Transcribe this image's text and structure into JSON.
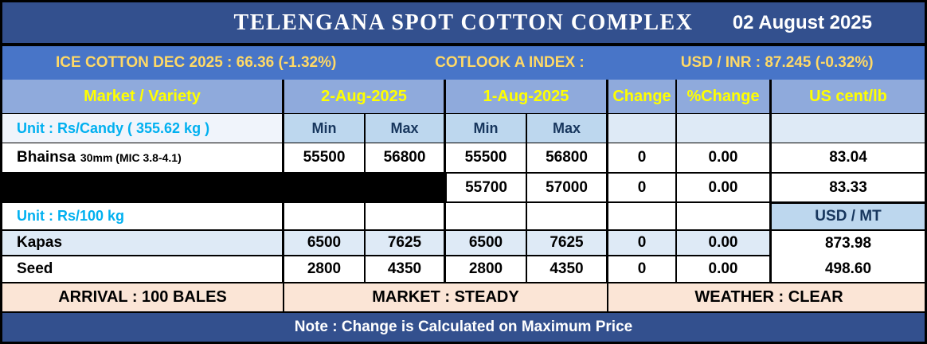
{
  "title": "TELENGANA SPOT COTTON COMPLEX",
  "date": "02 August 2025",
  "ticker": {
    "ice": "ICE COTTON DEC 2025 : 66.36 (-1.32%)",
    "cotlook": "COTLOOK A INDEX :",
    "usdinr": "USD / INR : 87.245 (-0.32%)"
  },
  "table": {
    "headers": {
      "market": "Market / Variety",
      "date1": "2-Aug-2025",
      "date2": "1-Aug-2025",
      "change": "Change",
      "pchange": "%Change",
      "uscent": "US cent/lb"
    },
    "subheaders": {
      "min": "Min",
      "max": "Max"
    },
    "unit_candy": "Unit : Rs/Candy ( 355.62 kg )",
    "unit_100kg": "Unit : Rs/100 kg",
    "usd_mt": "USD / MT",
    "rows": [
      {
        "name": "Bhainsa",
        "spec": "30mm (MIC 3.8-4.1)",
        "d1min": "55500",
        "d1max": "56800",
        "d2min": "55500",
        "d2max": "56800",
        "change": "0",
        "pchange": "0.00",
        "uscent": "83.04"
      },
      {
        "name": "",
        "spec": "",
        "d1min": "",
        "d1max": "",
        "d2min": "55700",
        "d2max": "57000",
        "change": "0",
        "pchange": "0.00",
        "uscent": "83.33"
      },
      {
        "name": "Kapas",
        "spec": "",
        "d1min": "6500",
        "d1max": "7625",
        "d2min": "6500",
        "d2max": "7625",
        "change": "0",
        "pchange": "0.00",
        "uscent": "873.98"
      },
      {
        "name": "Seed",
        "spec": "",
        "d1min": "2800",
        "d1max": "4350",
        "d2min": "2800",
        "d2max": "4350",
        "change": "0",
        "pchange": "0.00",
        "uscent": "498.60"
      }
    ]
  },
  "footer": {
    "arrival": "ARRIVAL : 100 BALES",
    "market": "MARKET : STEADY",
    "weather": "WEATHER : CLEAR"
  },
  "note": "Note : Change is Calculated on Maximum Price",
  "colors": {
    "title_bar": "#33508E",
    "ticker_bar": "#4875C8",
    "header_row": "#8FAADC",
    "minmax_cell": "#BDD7EE",
    "pale_cell": "#DEEAF6",
    "footer_strip": "#FBE5D6",
    "header_text": "#FFFF00",
    "ticker_text": "#FFD966",
    "unit_text": "#00B0F0",
    "navy_text": "#17365D",
    "redacted_row": "#000000"
  }
}
